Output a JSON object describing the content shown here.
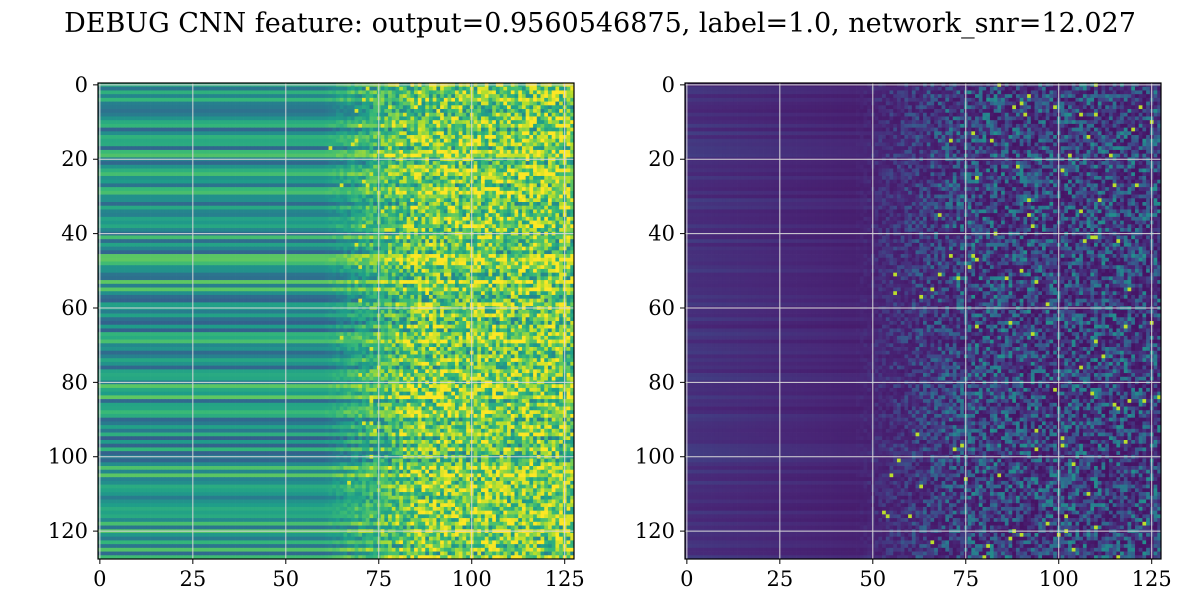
{
  "title": "DEBUG CNN feature: output=0.9560546875, label=1.0, network_snr=12.027",
  "chart_data": [
    {
      "type": "heatmap",
      "colormap": "viridis",
      "rows": 128,
      "cols": 128,
      "xlim": [
        0,
        127
      ],
      "ylim": [
        127,
        0
      ],
      "xticks": [
        0,
        25,
        50,
        75,
        100,
        125
      ],
      "yticks": [
        0,
        20,
        40,
        60,
        80,
        100,
        120
      ],
      "grid": true,
      "profile": {
        "description": "left half banded horizontal streaks, noisy speckle from column ~75 onward",
        "noise_onset_col": 75
      }
    },
    {
      "type": "heatmap",
      "colormap": "viridis",
      "rows": 128,
      "cols": 128,
      "xlim": [
        0,
        127
      ],
      "ylim": [
        127,
        0
      ],
      "xticks": [
        0,
        25,
        50,
        75,
        100,
        125
      ],
      "yticks": [
        0,
        20,
        40,
        60,
        80,
        100,
        120
      ],
      "grid": true,
      "profile": {
        "description": "mostly dark purple, speckled green/yellow noise from column ~50 onward",
        "noise_onset_col": 50
      }
    }
  ]
}
